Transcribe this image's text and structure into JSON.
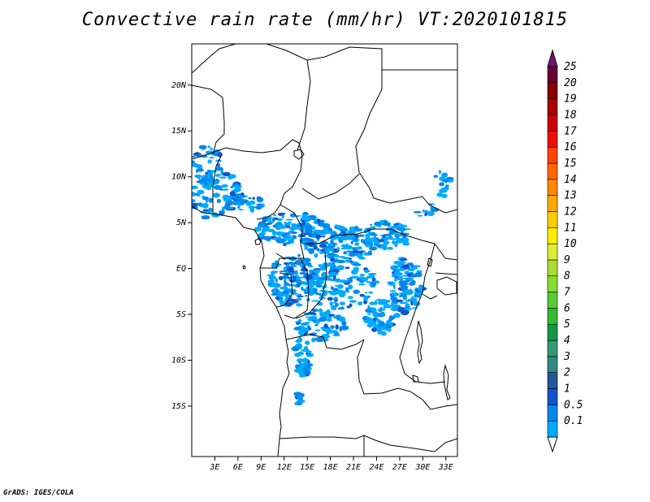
{
  "title": "Convective rain rate (mm/hr) VT:2020101815",
  "credit": "GrADS: IGES/COLA",
  "map": {
    "lon_range": [
      0,
      34.5
    ],
    "lat_range": [
      -20.5,
      24.5
    ],
    "lat_ticks": [
      {
        "value": 20,
        "label": "20N"
      },
      {
        "value": 15,
        "label": "15N"
      },
      {
        "value": 10,
        "label": "10N"
      },
      {
        "value": 5,
        "label": "5N"
      },
      {
        "value": 0,
        "label": "EQ"
      },
      {
        "value": -5,
        "label": "5S"
      },
      {
        "value": -10,
        "label": "10S"
      },
      {
        "value": -15,
        "label": "15S"
      }
    ],
    "lon_ticks": [
      {
        "value": 3,
        "label": "3E"
      },
      {
        "value": 6,
        "label": "6E"
      },
      {
        "value": 9,
        "label": "9E"
      },
      {
        "value": 12,
        "label": "12E"
      },
      {
        "value": 15,
        "label": "15E"
      },
      {
        "value": 18,
        "label": "18E"
      },
      {
        "value": 21,
        "label": "21E"
      },
      {
        "value": 24,
        "label": "24E"
      },
      {
        "value": 27,
        "label": "27E"
      },
      {
        "value": 30,
        "label": "30E"
      },
      {
        "value": 33,
        "label": "33E"
      }
    ]
  },
  "colorbar": [
    {
      "label": "0.1",
      "color": "#00aaff"
    },
    {
      "label": "0.5",
      "color": "#0088ee"
    },
    {
      "label": "1",
      "color": "#1155cc"
    },
    {
      "label": "2",
      "color": "#225599"
    },
    {
      "label": "3",
      "color": "#338888"
    },
    {
      "label": "4",
      "color": "#339977"
    },
    {
      "label": "5",
      "color": "#119944"
    },
    {
      "label": "6",
      "color": "#33bb33"
    },
    {
      "label": "7",
      "color": "#55cc33"
    },
    {
      "label": "8",
      "color": "#88dd33"
    },
    {
      "label": "9",
      "color": "#aadd33"
    },
    {
      "label": "10",
      "color": "#ddee33"
    },
    {
      "label": "11",
      "color": "#ffee00"
    },
    {
      "label": "12",
      "color": "#ffcc00"
    },
    {
      "label": "13",
      "color": "#ffaa00"
    },
    {
      "label": "14",
      "color": "#ff8800"
    },
    {
      "label": "15",
      "color": "#ff6600"
    },
    {
      "label": "16",
      "color": "#ff4400"
    },
    {
      "label": "17",
      "color": "#ee1100"
    },
    {
      "label": "18",
      "color": "#cc0000"
    },
    {
      "label": "19",
      "color": "#aa0000"
    },
    {
      "label": "20",
      "color": "#880000"
    },
    {
      "label": "25",
      "color": "#660033"
    }
  ],
  "colorbar_top_color": "#771177",
  "rain_colors": [
    "#00aaff",
    "#0088ee",
    "#1155cc"
  ]
}
